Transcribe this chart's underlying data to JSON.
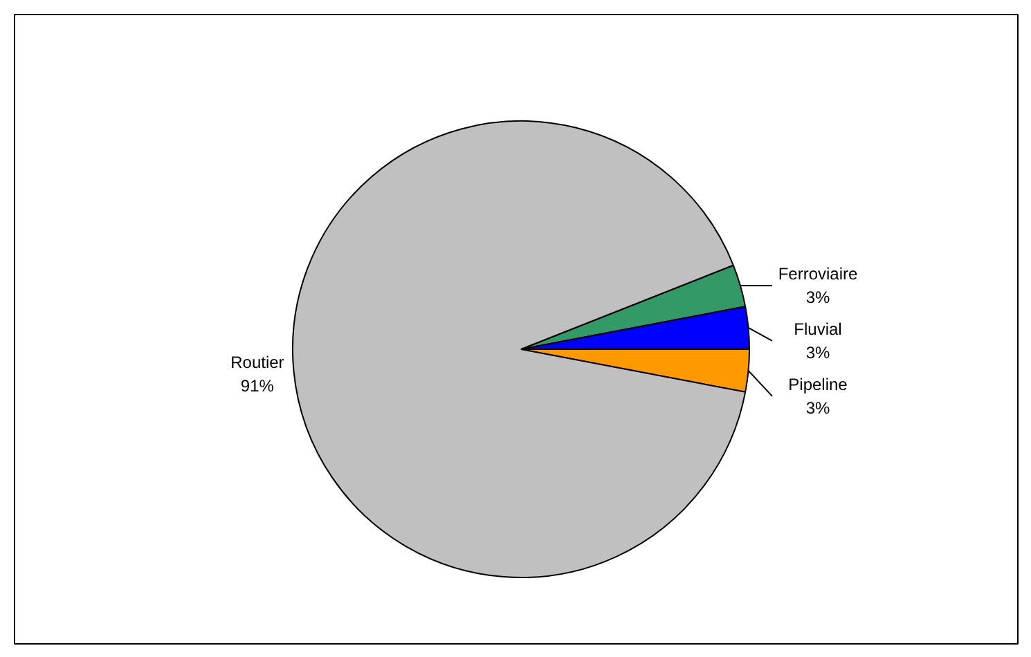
{
  "chart_data": {
    "type": "pie",
    "categories": [
      "Ferroviaire",
      "Fluvial",
      "Pipeline",
      "Routier"
    ],
    "values": [
      3,
      3,
      3,
      91
    ],
    "colors": [
      "#339966",
      "#0000ff",
      "#ff9900",
      "#c0c0c0"
    ],
    "value_labels": [
      "3%",
      "3%",
      "3%",
      "91%"
    ]
  }
}
